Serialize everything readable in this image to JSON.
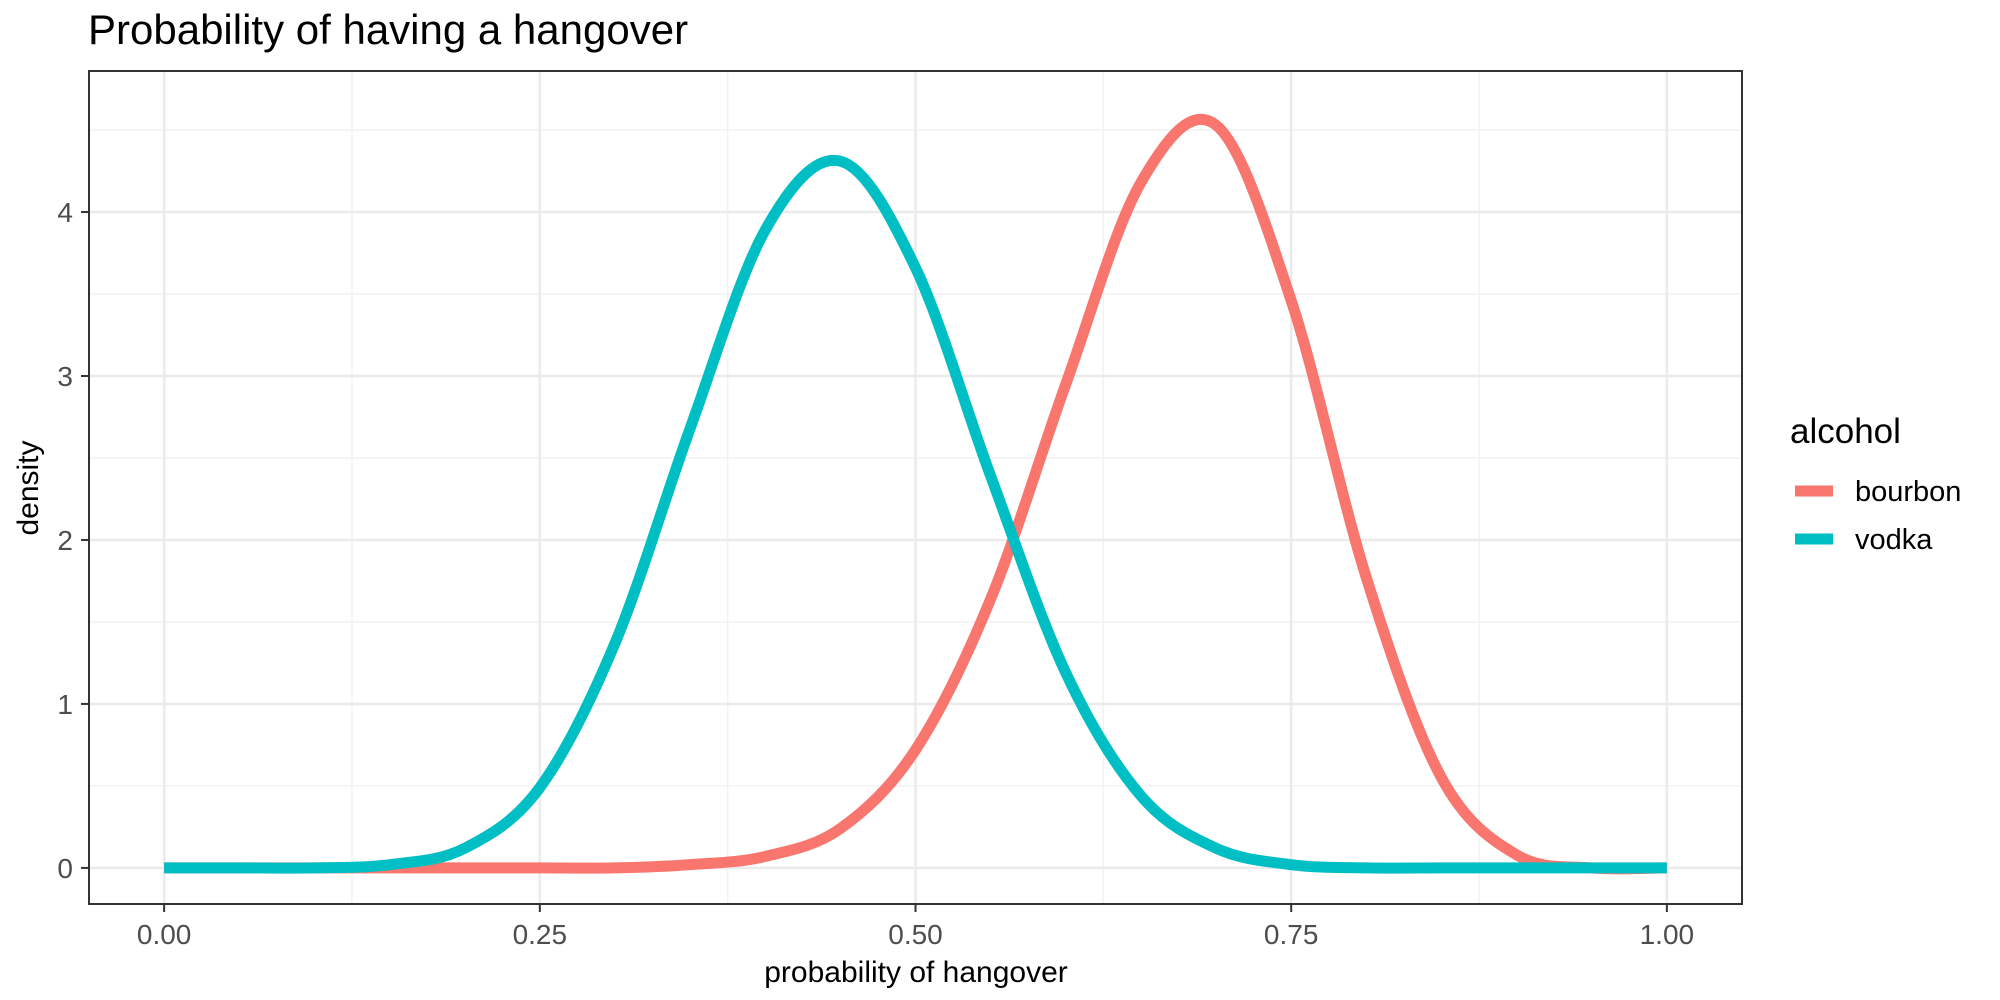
{
  "chart_data": {
    "type": "line",
    "title": "Probability of having a hangover",
    "xlabel": "probability of hangover",
    "ylabel": "density",
    "xlim": [
      -0.05,
      1.05
    ],
    "ylim": [
      -0.22,
      4.86
    ],
    "x_ticks": [
      0.0,
      0.25,
      0.5,
      0.75,
      1.0
    ],
    "x_tick_labels": [
      "0.00",
      "0.25",
      "0.50",
      "0.75",
      "1.00"
    ],
    "y_ticks": [
      0,
      1,
      2,
      3,
      4
    ],
    "y_tick_labels": [
      "0",
      "1",
      "2",
      "3",
      "4"
    ],
    "grid": true,
    "legend": {
      "title": "alcohol",
      "placement": "right"
    },
    "series": [
      {
        "name": "bourbon",
        "color": "#F8766D",
        "x": [
          0.0,
          0.05,
          0.1,
          0.15,
          0.2,
          0.25,
          0.3,
          0.35,
          0.4,
          0.45,
          0.5,
          0.55,
          0.6,
          0.65,
          0.7,
          0.75,
          0.8,
          0.85,
          0.9,
          0.95,
          1.0
        ],
        "y": [
          0.0,
          0.0,
          0.0,
          0.0,
          0.0,
          0.0,
          0.0,
          0.02,
          0.07,
          0.24,
          0.72,
          1.64,
          2.95,
          4.18,
          4.53,
          3.46,
          1.77,
          0.55,
          0.08,
          0.0,
          0.0
        ]
      },
      {
        "name": "vodka",
        "color": "#00BFC4",
        "x": [
          0.0,
          0.05,
          0.1,
          0.15,
          0.2,
          0.25,
          0.3,
          0.35,
          0.4,
          0.45,
          0.5,
          0.55,
          0.6,
          0.65,
          0.7,
          0.75,
          0.8,
          0.85,
          0.9,
          0.95,
          1.0
        ],
        "y": [
          0.0,
          0.0,
          0.0,
          0.02,
          0.12,
          0.49,
          1.37,
          2.68,
          3.89,
          4.31,
          3.66,
          2.39,
          1.19,
          0.44,
          0.12,
          0.02,
          0.0,
          0.0,
          0.0,
          0.0,
          0.0
        ]
      }
    ]
  }
}
